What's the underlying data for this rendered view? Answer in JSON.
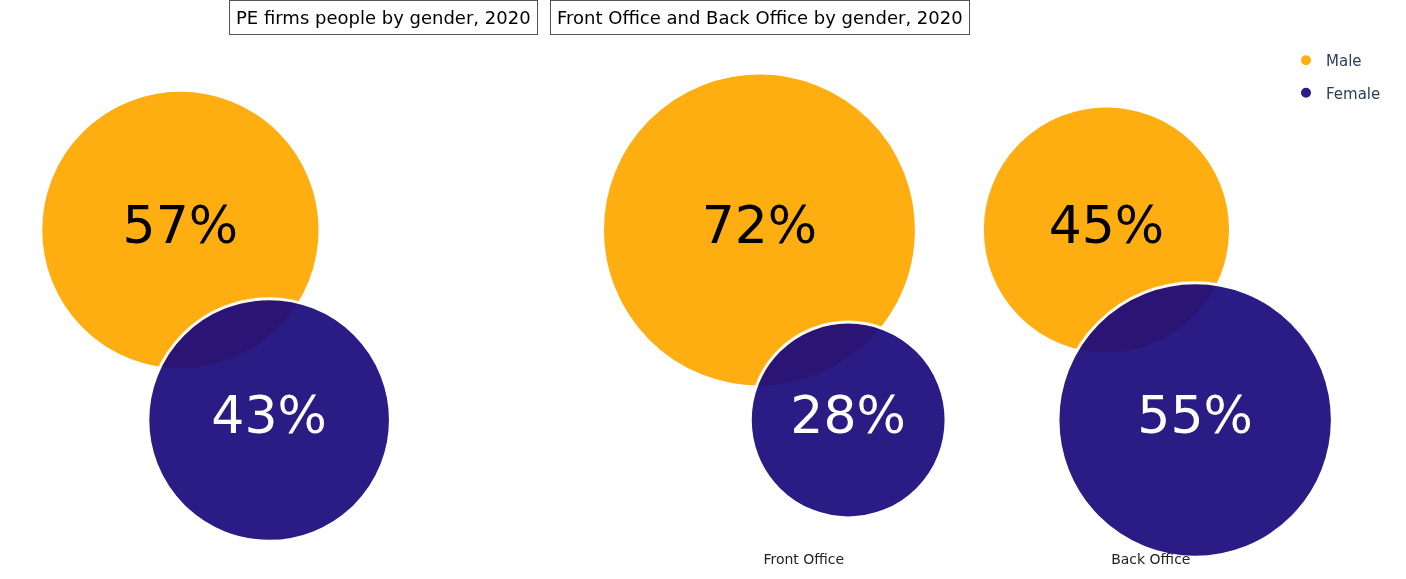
{
  "chart_data": [
    {
      "type": "other",
      "title": "PE firms people by gender, 2020",
      "series": [
        {
          "colors": [
            "#ffa800",
            "#1a0a7c"
          ],
          "values": [
            57,
            43
          ],
          "value_labels": [
            "57%",
            "43%"
          ]
        }
      ]
    },
    {
      "type": "other",
      "title": "Front Office and Back Office by gender, 2020",
      "categories": [
        "Front Office",
        "Back Office"
      ],
      "legend": "top right",
      "series": [
        {
          "name": "Male",
          "color": "#ffa800",
          "values": [
            72,
            45
          ],
          "value_labels": [
            "72%",
            "45%"
          ]
        },
        {
          "name": "Female",
          "color": "#1a0a7c",
          "values": [
            28,
            55
          ],
          "value_labels": [
            "28%",
            "55%"
          ]
        }
      ]
    }
  ]
}
